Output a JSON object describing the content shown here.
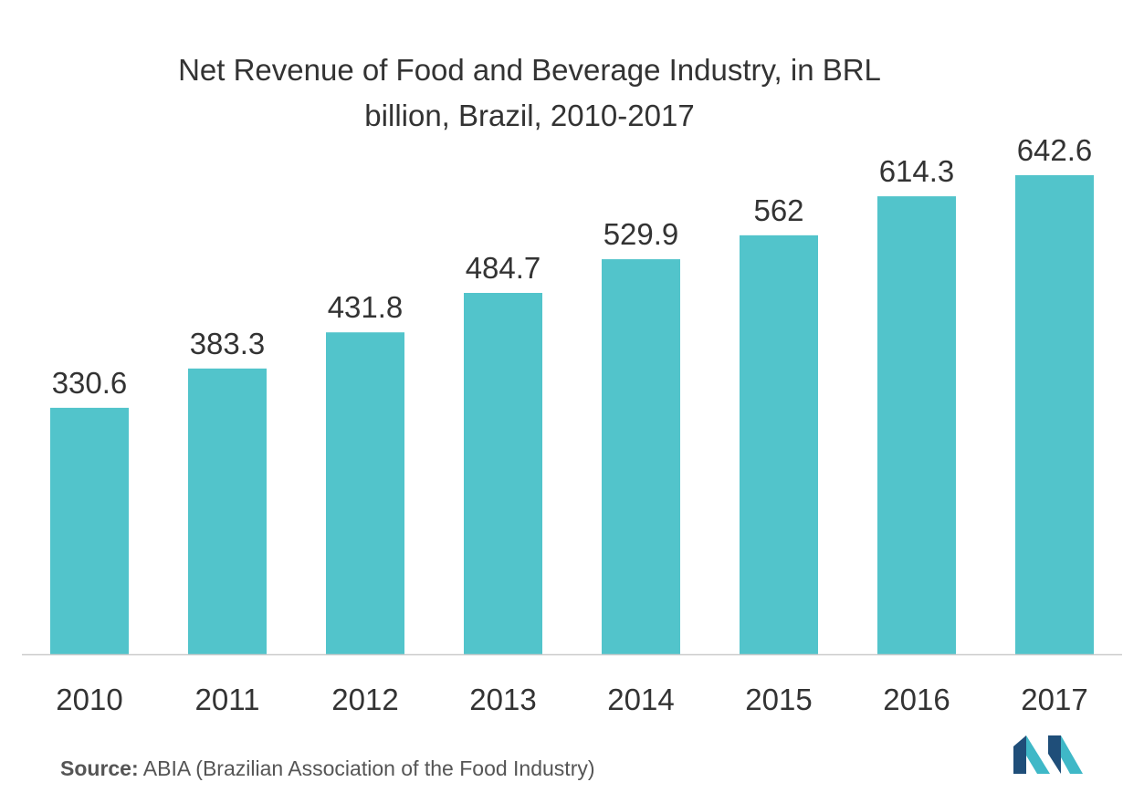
{
  "chart_data": {
    "type": "bar",
    "title_line1": "Net Revenue of Food and Beverage Industry, in BRL",
    "title_line2": "billion, Brazil, 2010-2017",
    "categories": [
      "2010",
      "2011",
      "2012",
      "2013",
      "2014",
      "2015",
      "2016",
      "2017"
    ],
    "values": [
      330.6,
      383.3,
      431.8,
      484.7,
      529.9,
      562,
      614.3,
      642.6
    ],
    "data_labels": [
      "330.6",
      "383.3",
      "431.8",
      "484.7",
      "529.9",
      "562",
      "614.3",
      "642.6"
    ],
    "bar_color": "#52C4CB",
    "ylim": [
      0,
      642.6
    ],
    "grid": false,
    "legend": "none"
  },
  "source": {
    "label": "Source:",
    "text": "ABIA (Brazilian Association of the Food Industry)"
  },
  "colors": {
    "axis": "#cccccc",
    "text": "#333333",
    "logo_dark": "#1F4E79",
    "logo_light": "#3FB8C7"
  }
}
